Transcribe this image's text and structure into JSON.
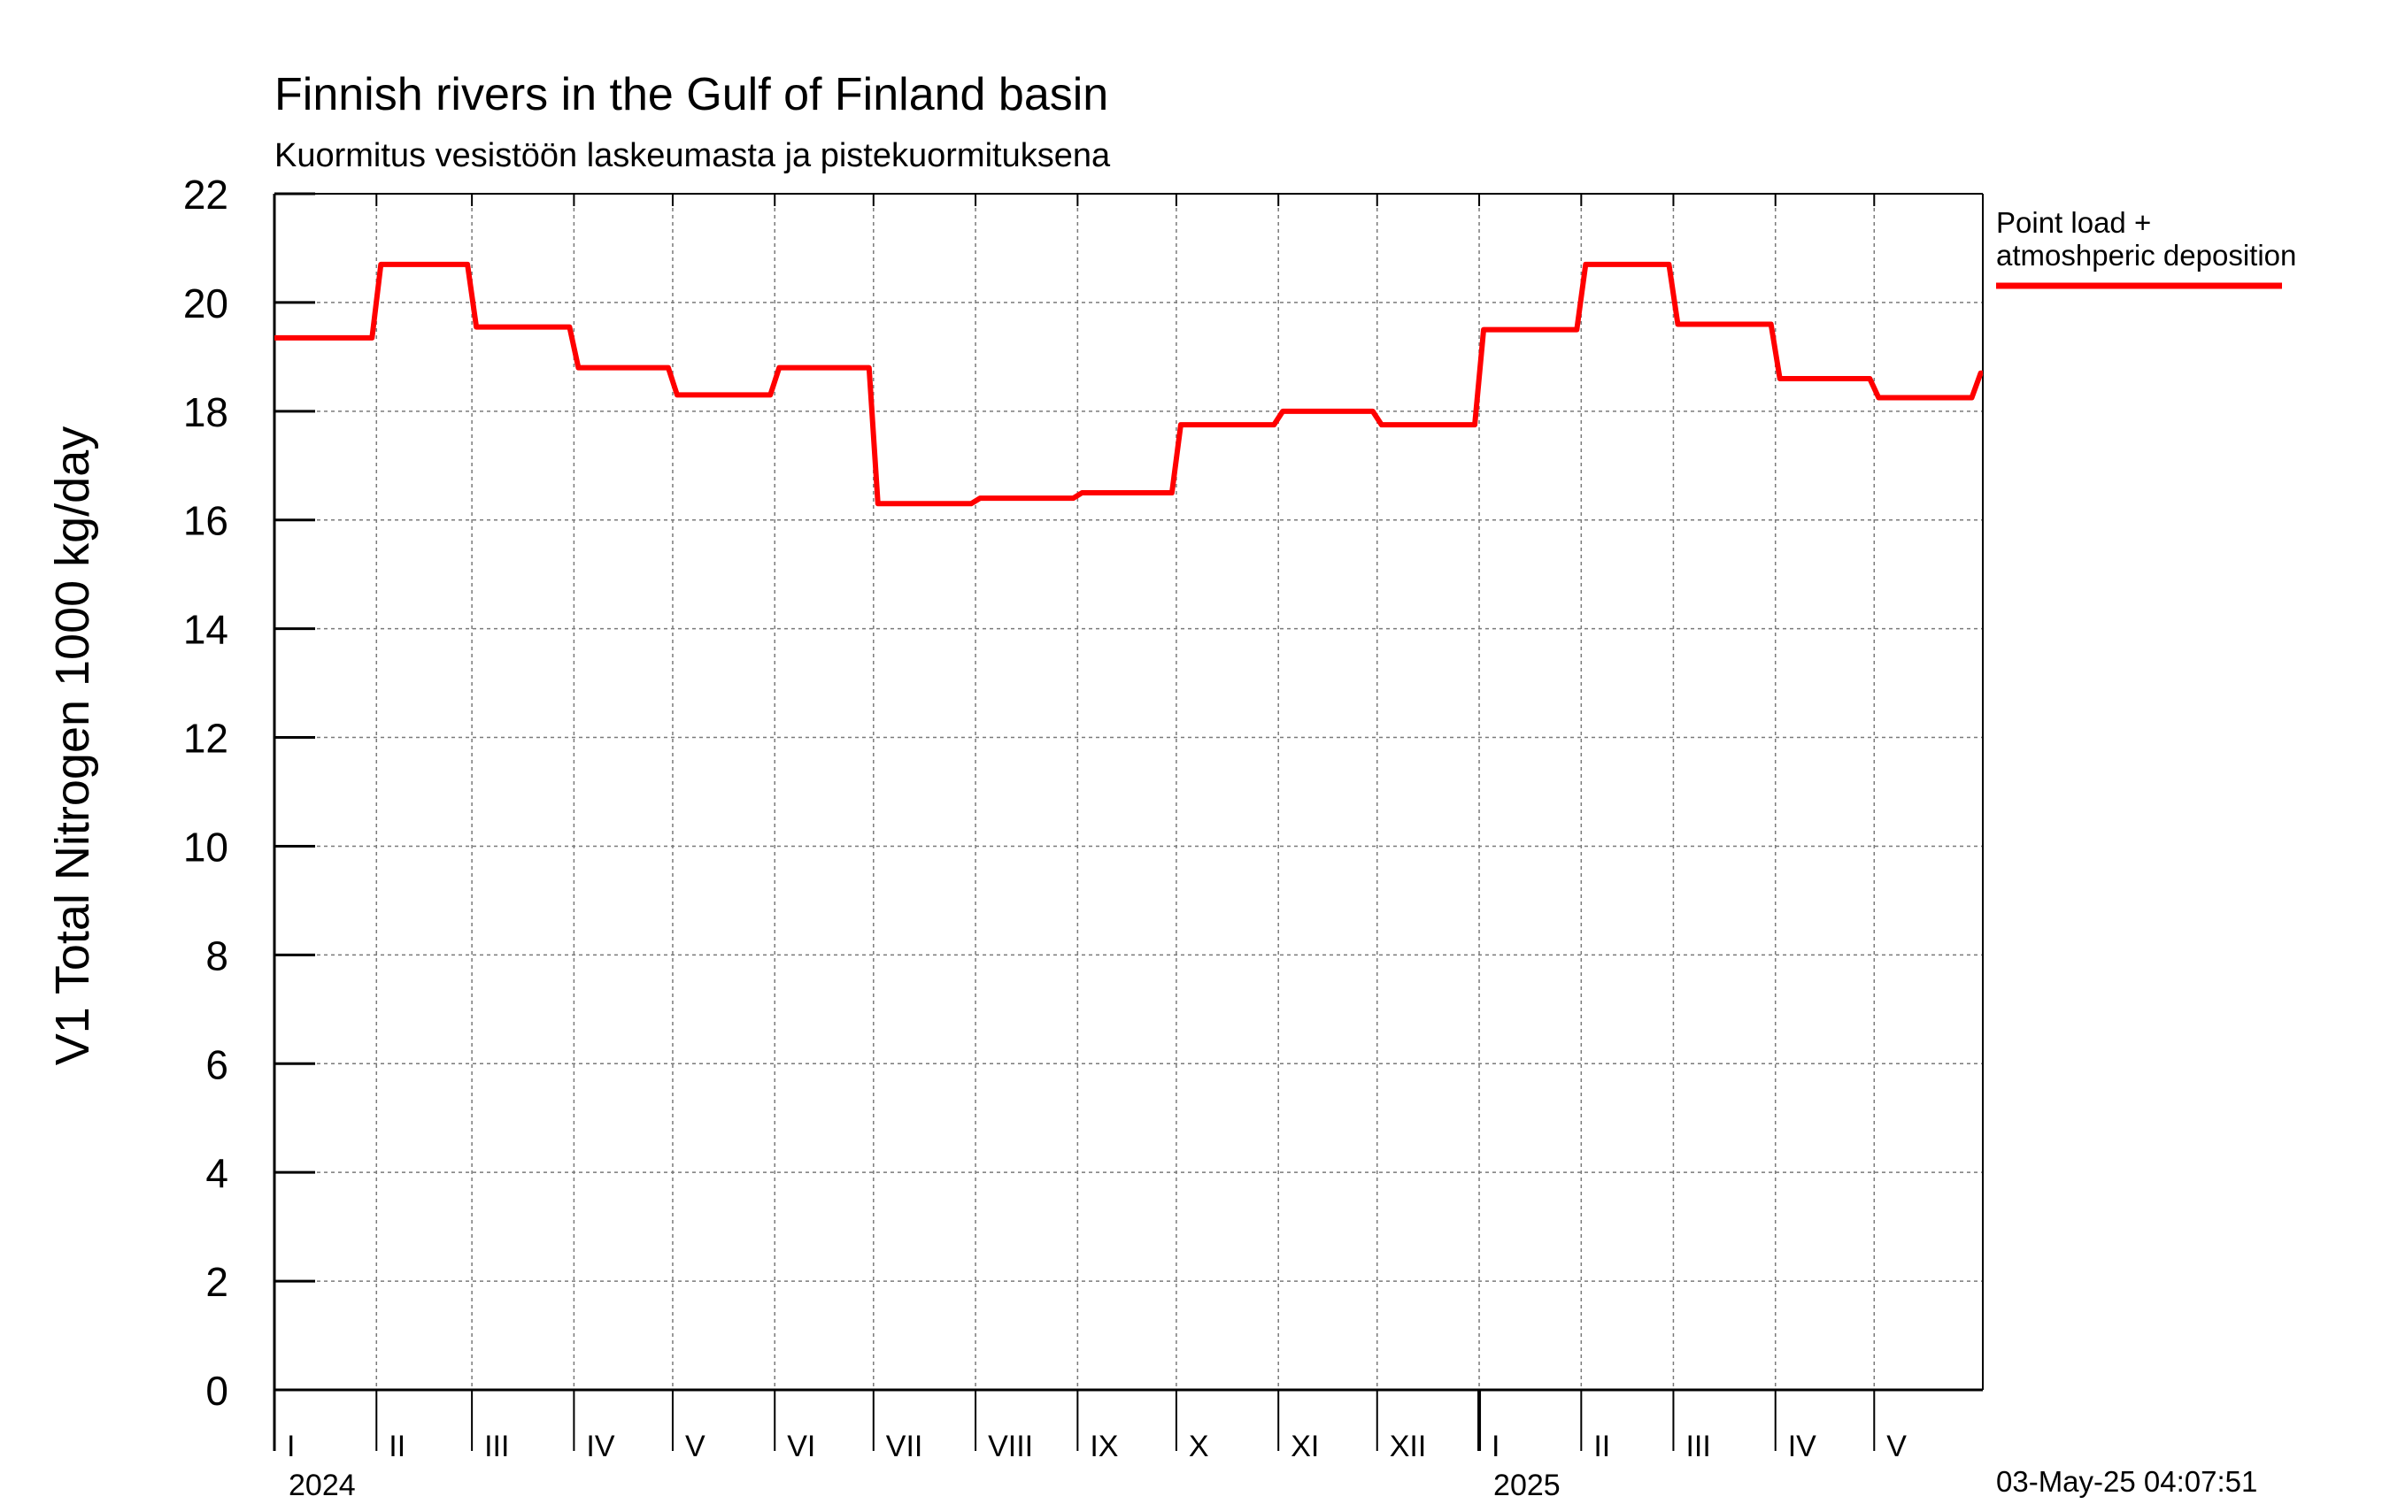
{
  "chart_data": {
    "type": "line",
    "title": "Finnish rivers in the Gulf of Finland basin",
    "subtitle": "Kuormitus vesistöön laskeumasta ja pistekuormituksena",
    "ylabel": "V1 Total Nitrogen 1000 kg/day",
    "xlabel": "",
    "ylim": [
      0,
      22
    ],
    "yticks": [
      0,
      2,
      4,
      6,
      8,
      10,
      12,
      14,
      16,
      18,
      20,
      22
    ],
    "xlim": [
      "2024-01-01",
      "2025-06-03"
    ],
    "grid": true,
    "legend_position": "top-right",
    "month_labels": [
      {
        "label": "I",
        "start": "2024-01-01"
      },
      {
        "label": "II",
        "start": "2024-02-01"
      },
      {
        "label": "III",
        "start": "2024-03-01"
      },
      {
        "label": "IV",
        "start": "2024-04-01"
      },
      {
        "label": "V",
        "start": "2024-05-01"
      },
      {
        "label": "VI",
        "start": "2024-06-01"
      },
      {
        "label": "VII",
        "start": "2024-07-01"
      },
      {
        "label": "VIII",
        "start": "2024-08-01"
      },
      {
        "label": "IX",
        "start": "2024-09-01"
      },
      {
        "label": "X",
        "start": "2024-10-01"
      },
      {
        "label": "XI",
        "start": "2024-11-01"
      },
      {
        "label": "XII",
        "start": "2024-12-01"
      },
      {
        "label": "I",
        "start": "2025-01-01"
      },
      {
        "label": "II",
        "start": "2025-02-01"
      },
      {
        "label": "III",
        "start": "2025-03-01"
      },
      {
        "label": "IV",
        "start": "2025-04-01"
      },
      {
        "label": "V",
        "start": "2025-05-01"
      }
    ],
    "year_labels": [
      {
        "label": "2024",
        "date": "2024-01-01"
      },
      {
        "label": "2025",
        "date": "2025-01-01"
      }
    ],
    "series": [
      {
        "name": "Point load + atmoshperic deposition",
        "color": "#ff0000",
        "steps": [
          {
            "start": "2024-01-01",
            "value": 19.35
          },
          {
            "start": "2024-02-01",
            "value": 20.7
          },
          {
            "start": "2024-03-01",
            "value": 19.55
          },
          {
            "start": "2024-04-01",
            "value": 18.8
          },
          {
            "start": "2024-05-01",
            "value": 18.3
          },
          {
            "start": "2024-06-01",
            "value": 18.8
          },
          {
            "start": "2024-07-01",
            "value": 16.3
          },
          {
            "start": "2024-08-01",
            "value": 16.4
          },
          {
            "start": "2024-09-01",
            "value": 16.5
          },
          {
            "start": "2024-10-01",
            "value": 17.75
          },
          {
            "start": "2024-11-01",
            "value": 18.0
          },
          {
            "start": "2024-12-01",
            "value": 17.75
          },
          {
            "start": "2025-01-01",
            "value": 19.5
          },
          {
            "start": "2025-02-01",
            "value": 20.7
          },
          {
            "start": "2025-03-01",
            "value": 19.6
          },
          {
            "start": "2025-04-01",
            "value": 18.6
          },
          {
            "start": "2025-05-01",
            "value": 18.25
          },
          {
            "start": "2025-06-01",
            "value": 18.7
          }
        ],
        "end": "2025-06-03"
      }
    ],
    "legend_lines": [
      "Point load +",
      "atmoshperic deposition"
    ],
    "timestamp": "03-May-25 04:07:51"
  }
}
